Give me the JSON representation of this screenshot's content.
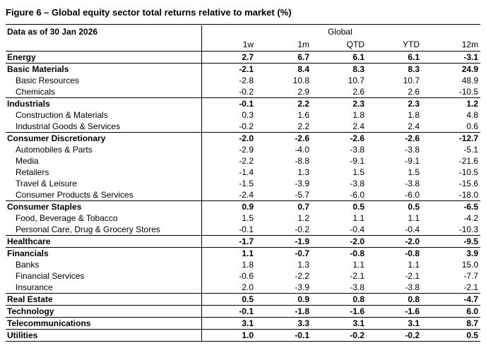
{
  "title": "Figure 6 – Global equity sector total returns relative to market (%)",
  "table": {
    "as_of": "Data as of 30 Jan 2026",
    "region": "Global",
    "columns": [
      "1w",
      "1m",
      "QTD",
      "YTD",
      "12m"
    ],
    "sectors": [
      {
        "name": "Energy",
        "values": [
          "2.7",
          "6.7",
          "6.1",
          "6.1",
          "-3.1"
        ],
        "subsectors": []
      },
      {
        "name": "Basic Materials",
        "values": [
          "-2.1",
          "8.4",
          "8.3",
          "8.3",
          "24.9"
        ],
        "subsectors": [
          {
            "name": "Basic Resources",
            "values": [
              "-2.8",
              "10.8",
              "10.7",
              "10.7",
              "48.9"
            ]
          },
          {
            "name": "Chemicals",
            "values": [
              "-0.2",
              "2.9",
              "2.6",
              "2.6",
              "-10.5"
            ]
          }
        ]
      },
      {
        "name": "Industrials",
        "values": [
          "-0.1",
          "2.2",
          "2.3",
          "2.3",
          "1.2"
        ],
        "subsectors": [
          {
            "name": "Construction & Materials",
            "values": [
              "0.3",
              "1.6",
              "1.8",
              "1.8",
              "4.8"
            ]
          },
          {
            "name": "Industrial Goods & Services",
            "values": [
              "-0.2",
              "2.2",
              "2.4",
              "2.4",
              "0.6"
            ]
          }
        ]
      },
      {
        "name": "Consumer Discretionary",
        "values": [
          "-2.0",
          "-2.6",
          "-2.6",
          "-2.6",
          "-12.7"
        ],
        "subsectors": [
          {
            "name": "Automobiles & Parts",
            "values": [
              "-2.9",
              "-4.0",
              "-3.8",
              "-3.8",
              "-5.1"
            ]
          },
          {
            "name": "Media",
            "values": [
              "-2.2",
              "-8.8",
              "-9.1",
              "-9.1",
              "-21.6"
            ]
          },
          {
            "name": "Retailers",
            "values": [
              "-1.4",
              "1.3",
              "1.5",
              "1.5",
              "-10.5"
            ]
          },
          {
            "name": "Travel & Leisure",
            "values": [
              "-1.5",
              "-3.9",
              "-3.8",
              "-3.8",
              "-15.6"
            ]
          },
          {
            "name": "Consumer Products & Services",
            "values": [
              "-2.4",
              "-5.7",
              "-6.0",
              "-6.0",
              "-18.0"
            ]
          }
        ]
      },
      {
        "name": "Consumer Staples",
        "values": [
          "0.9",
          "0.7",
          "0.5",
          "0.5",
          "-6.5"
        ],
        "subsectors": [
          {
            "name": "Food, Beverage & Tobacco",
            "values": [
              "1.5",
              "1.2",
              "1.1",
              "1.1",
              "-4.2"
            ]
          },
          {
            "name": "Personal Care, Drug & Grocery Stores",
            "values": [
              "-0.1",
              "-0.2",
              "-0.4",
              "-0.4",
              "-10.3"
            ]
          }
        ]
      },
      {
        "name": "Healthcare",
        "values": [
          "-1.7",
          "-1.9",
          "-2.0",
          "-2.0",
          "-9.5"
        ],
        "subsectors": []
      },
      {
        "name": "Financials",
        "values": [
          "1.1",
          "-0.7",
          "-0.8",
          "-0.8",
          "3.9"
        ],
        "subsectors": [
          {
            "name": "Banks",
            "values": [
              "1.8",
              "1.3",
              "1.1",
              "1.1",
              "15.0"
            ]
          },
          {
            "name": "Financial Services",
            "values": [
              "-0.6",
              "-2.2",
              "-2.1",
              "-2.1",
              "-7.7"
            ]
          },
          {
            "name": "Insurance",
            "values": [
              "2.0",
              "-3.9",
              "-3.8",
              "-3.8",
              "-2.1"
            ]
          }
        ]
      },
      {
        "name": "Real Estate",
        "values": [
          "0.5",
          "0.9",
          "0.8",
          "0.8",
          "-4.7"
        ],
        "subsectors": []
      },
      {
        "name": "Technology",
        "values": [
          "-0.1",
          "-1.8",
          "-1.6",
          "-1.6",
          "6.0"
        ],
        "subsectors": []
      },
      {
        "name": "Telecommunications",
        "values": [
          "3.1",
          "3.3",
          "3.1",
          "3.1",
          "8.7"
        ],
        "subsectors": []
      },
      {
        "name": "Utilities",
        "values": [
          "1.0",
          "-0.1",
          "-0.2",
          "-0.2",
          "0.5"
        ],
        "subsectors": []
      }
    ]
  }
}
